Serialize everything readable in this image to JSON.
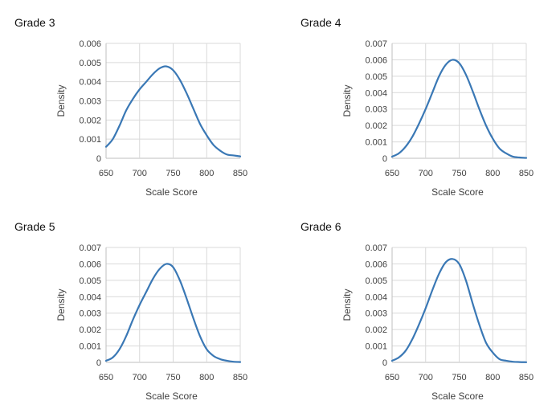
{
  "chart_data": [
    {
      "type": "line",
      "title": "Grade 3",
      "xlabel": "Scale Score",
      "ylabel": "Density",
      "xlim": [
        650,
        850
      ],
      "ylim": [
        0,
        0.006
      ],
      "xticks": [
        "650",
        "700",
        "750",
        "800",
        "850"
      ],
      "yticks": [
        "0",
        "0.001",
        "0.002",
        "0.003",
        "0.004",
        "0.005",
        "0.006"
      ],
      "grid": true,
      "series": [
        {
          "color": "#3a78b5",
          "x": [
            650,
            660,
            670,
            680,
            690,
            700,
            710,
            720,
            730,
            740,
            750,
            760,
            770,
            780,
            790,
            800,
            810,
            820,
            830,
            840,
            850
          ],
          "y": [
            0.0006,
            0.001,
            0.0017,
            0.0025,
            0.0031,
            0.0036,
            0.004,
            0.0044,
            0.0047,
            0.0048,
            0.0046,
            0.0041,
            0.0034,
            0.0026,
            0.0018,
            0.0012,
            0.0007,
            0.0004,
            0.0002,
            0.00015,
            0.0001
          ]
        }
      ]
    },
    {
      "type": "line",
      "title": "Grade 4",
      "xlabel": "Scale Score",
      "ylabel": "Density",
      "xlim": [
        650,
        850
      ],
      "ylim": [
        0,
        0.007
      ],
      "xticks": [
        "650",
        "700",
        "750",
        "800",
        "850"
      ],
      "yticks": [
        "0",
        "0.001",
        "0.002",
        "0.003",
        "0.004",
        "0.005",
        "0.006",
        "0.007"
      ],
      "grid": true,
      "series": [
        {
          "color": "#3a78b5",
          "x": [
            650,
            660,
            670,
            680,
            690,
            700,
            710,
            720,
            730,
            740,
            750,
            760,
            770,
            780,
            790,
            800,
            810,
            820,
            830,
            840,
            850
          ],
          "y": [
            0.0001,
            0.0003,
            0.0007,
            0.0013,
            0.0021,
            0.003,
            0.004,
            0.005,
            0.0057,
            0.006,
            0.0058,
            0.0051,
            0.0041,
            0.003,
            0.002,
            0.0012,
            0.0006,
            0.0003,
            0.0001,
            5e-05,
            2e-05
          ]
        }
      ]
    },
    {
      "type": "line",
      "title": "Grade 5",
      "xlabel": "Scale Score",
      "ylabel": "Density",
      "xlim": [
        650,
        850
      ],
      "ylim": [
        0,
        0.007
      ],
      "xticks": [
        "650",
        "700",
        "750",
        "800",
        "850"
      ],
      "yticks": [
        "0",
        "0.001",
        "0.002",
        "0.003",
        "0.004",
        "0.005",
        "0.006",
        "0.007"
      ],
      "grid": true,
      "series": [
        {
          "color": "#3a78b5",
          "x": [
            650,
            660,
            670,
            680,
            690,
            700,
            710,
            720,
            730,
            740,
            750,
            760,
            770,
            780,
            790,
            800,
            810,
            820,
            830,
            840,
            850
          ],
          "y": [
            0.0001,
            0.0003,
            0.0008,
            0.0016,
            0.0026,
            0.0035,
            0.0043,
            0.0051,
            0.0057,
            0.006,
            0.0058,
            0.005,
            0.0039,
            0.0027,
            0.0016,
            0.0008,
            0.0004,
            0.0002,
            0.0001,
            4e-05,
            2e-05
          ]
        }
      ]
    },
    {
      "type": "line",
      "title": "Grade 6",
      "xlabel": "Scale Score",
      "ylabel": "Density",
      "xlim": [
        650,
        850
      ],
      "ylim": [
        0,
        0.007
      ],
      "xticks": [
        "650",
        "700",
        "750",
        "800",
        "850"
      ],
      "yticks": [
        "0",
        "0.001",
        "0.002",
        "0.003",
        "0.004",
        "0.005",
        "0.006",
        "0.007"
      ],
      "grid": true,
      "series": [
        {
          "color": "#3a78b5",
          "x": [
            650,
            660,
            670,
            680,
            690,
            700,
            710,
            720,
            730,
            740,
            750,
            760,
            770,
            780,
            790,
            800,
            810,
            820,
            830,
            840,
            850
          ],
          "y": [
            0.0001,
            0.0003,
            0.0007,
            0.0014,
            0.0023,
            0.0033,
            0.0044,
            0.0054,
            0.0061,
            0.0063,
            0.006,
            0.005,
            0.0036,
            0.0023,
            0.0012,
            0.0006,
            0.0002,
            0.0001,
            4e-05,
            2e-05,
            1e-05
          ]
        }
      ]
    }
  ]
}
